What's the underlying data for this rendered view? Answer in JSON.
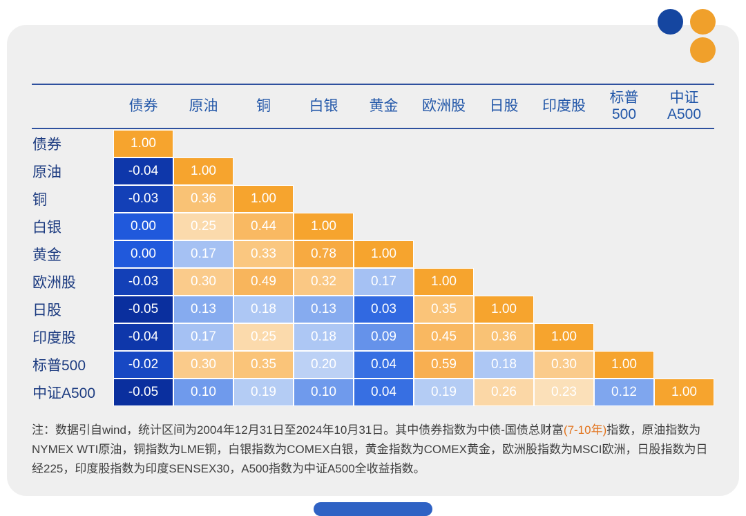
{
  "brand": {
    "dot_blue_color": "#1546a0",
    "dot_orange_color": "#f0a02b",
    "bottom_bar_color": "#2f62c4"
  },
  "chart_data": {
    "type": "heatmap",
    "subtype": "correlation-matrix-lower-triangle",
    "columns": [
      "债券",
      "原油",
      "铜",
      "白银",
      "黄金",
      "欧洲股",
      "日股",
      "印度股",
      "标普\n500",
      "中证\nA500"
    ],
    "rows": [
      "债券",
      "原油",
      "铜",
      "白银",
      "黄金",
      "欧洲股",
      "日股",
      "印度股",
      "标普500",
      "中证A500"
    ],
    "matrix": [
      [
        1.0
      ],
      [
        -0.04,
        1.0
      ],
      [
        -0.03,
        0.36,
        1.0
      ],
      [
        0.0,
        0.25,
        0.44,
        1.0
      ],
      [
        0.0,
        0.17,
        0.33,
        0.78,
        1.0
      ],
      [
        -0.03,
        0.3,
        0.49,
        0.32,
        0.17,
        1.0
      ],
      [
        -0.05,
        0.13,
        0.18,
        0.13,
        0.03,
        0.35,
        1.0
      ],
      [
        -0.04,
        0.17,
        0.25,
        0.18,
        0.09,
        0.45,
        0.36,
        1.0
      ],
      [
        -0.02,
        0.3,
        0.35,
        0.2,
        0.04,
        0.59,
        0.18,
        0.3,
        1.0
      ],
      [
        -0.05,
        0.1,
        0.19,
        0.1,
        0.04,
        0.19,
        0.26,
        0.23,
        0.12,
        1.0
      ]
    ],
    "value_range": [
      -0.05,
      1.0
    ],
    "grid": false,
    "legend": false,
    "color_stops": [
      {
        "v": -0.05,
        "c": "#0A2F9E"
      },
      {
        "v": 0.0,
        "c": "#2059DC"
      },
      {
        "v": 0.05,
        "c": "#3D74E4"
      },
      {
        "v": 0.1,
        "c": "#6F9AEC"
      },
      {
        "v": 0.15,
        "c": "#96B7F1"
      },
      {
        "v": 0.21,
        "c": "#C3D6F6"
      },
      {
        "v": 0.22,
        "c": "#FBE3C0"
      },
      {
        "v": 0.3,
        "c": "#FACB8B"
      },
      {
        "v": 0.4,
        "c": "#F9BC67"
      },
      {
        "v": 0.55,
        "c": "#F8B054"
      },
      {
        "v": 0.8,
        "c": "#F7A93F"
      },
      {
        "v": 1.0,
        "c": "#F6A42E"
      }
    ]
  },
  "note": {
    "prefix": "注：数据引自wind，统计区间为2004年12月31日至2024年10月31日。其中债券指数为中债-国债总财富",
    "highlight": "(7-10年)",
    "suffix": "指数，原油指数为NYMEX WTI原油，铜指数为LME铜，白银指数为COMEX白银，黄金指数为COMEX黄金，欧洲股指数为MSCI欧洲，日股指数为日经225，印度股指数为印度SENSEX30，A500指数为中证A500全收益指数。"
  }
}
